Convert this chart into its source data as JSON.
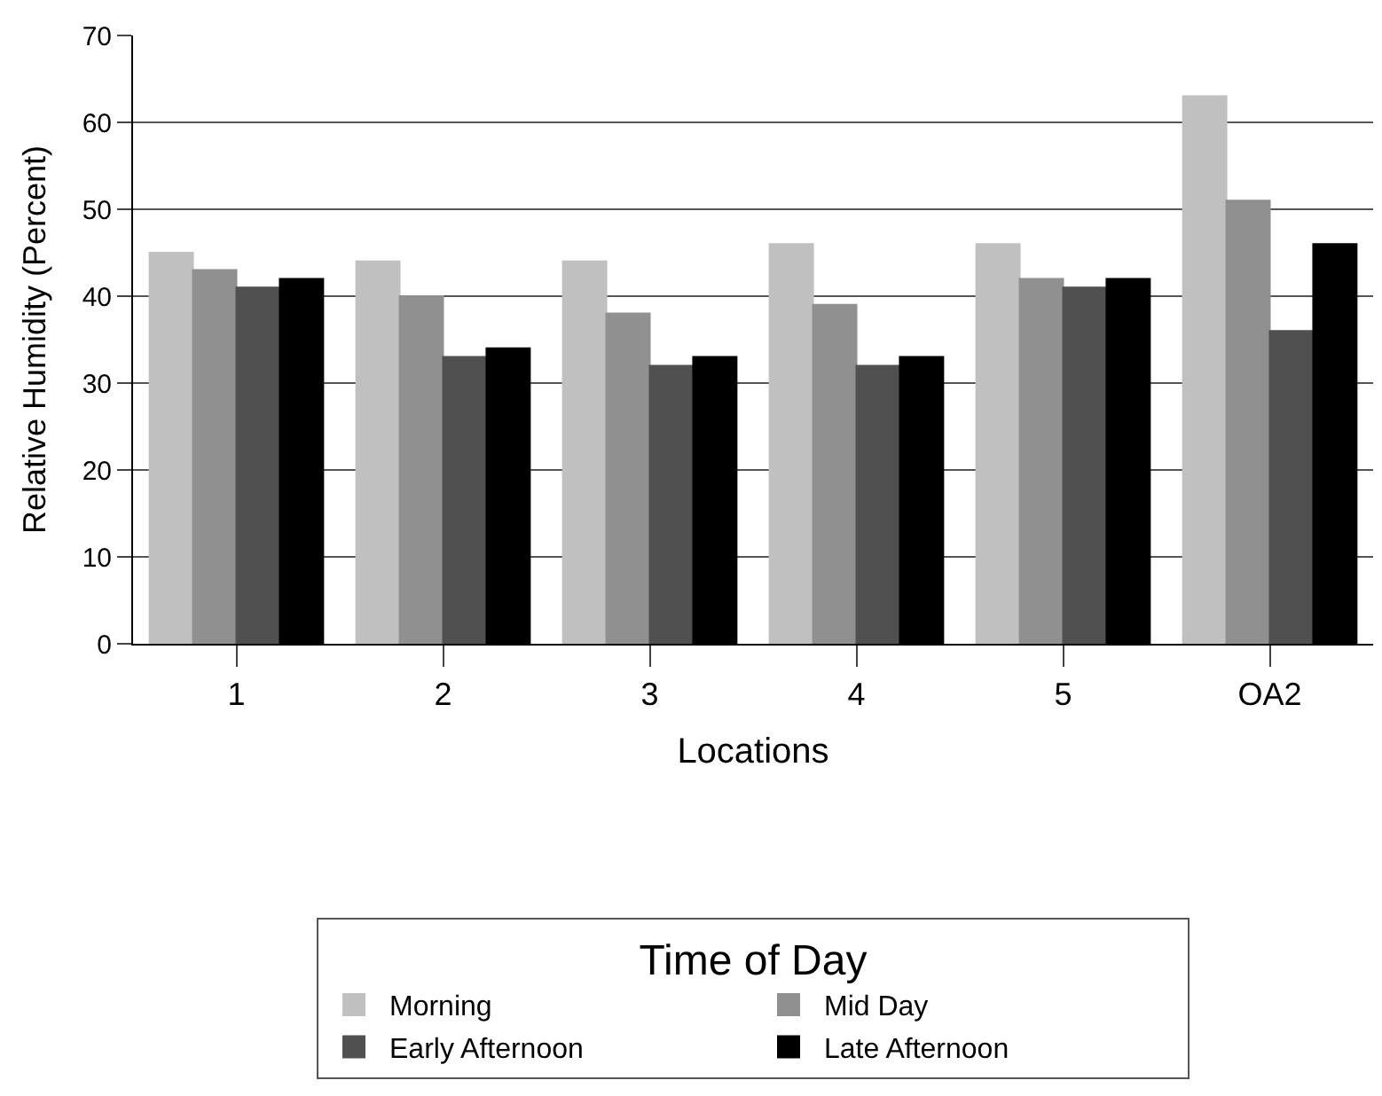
{
  "chart_data": {
    "type": "bar",
    "xlabel": "Locations",
    "ylabel": "Relative Humidity (Percent)",
    "legend_title": "Time of Day",
    "categories": [
      "1",
      "2",
      "3",
      "4",
      "5",
      "OA2"
    ],
    "series": [
      {
        "name": "Morning",
        "color": "#c0c0c0",
        "values": [
          45,
          44,
          44,
          46,
          46,
          63
        ]
      },
      {
        "name": "Mid Day",
        "color": "#909090",
        "values": [
          43,
          40,
          38,
          39,
          42,
          51
        ]
      },
      {
        "name": "Early Afternoon",
        "color": "#505050",
        "values": [
          41,
          33,
          32,
          32,
          41,
          36
        ]
      },
      {
        "name": "Late Afternoon",
        "color": "#000000",
        "values": [
          42,
          34,
          33,
          33,
          42,
          46
        ]
      }
    ],
    "ylim": [
      0,
      70
    ],
    "yticks": [
      0,
      10,
      20,
      30,
      40,
      50,
      60,
      70
    ],
    "grid": "y",
    "legend": "bottom"
  }
}
